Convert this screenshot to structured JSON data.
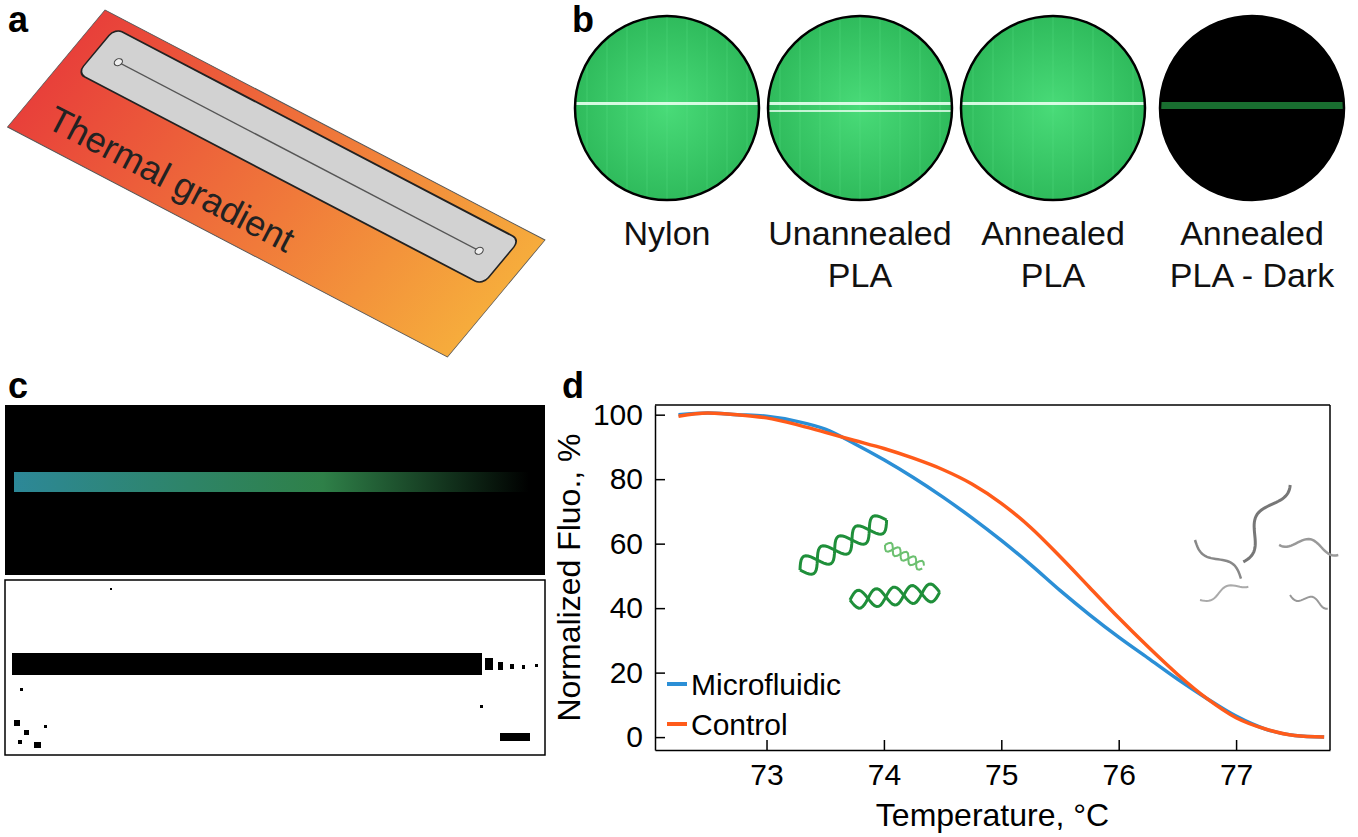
{
  "panels": {
    "a": {
      "letter": "a",
      "label": "Thermal gradient"
    },
    "b": {
      "letter": "b",
      "samples": [
        "Nylon",
        "Unannealed PLA",
        "Annealed PLA",
        "Annealed PLA - Dark"
      ]
    },
    "c": {
      "letter": "c"
    },
    "d": {
      "letter": "d"
    }
  },
  "chart_data": {
    "type": "line",
    "x_label": "Temperature, °C",
    "y_label": "Normalized Fluo., %",
    "x": [
      72.25,
      72.5,
      72.75,
      73,
      73.25,
      73.5,
      73.75,
      74,
      74.25,
      74.5,
      74.75,
      75,
      75.25,
      75.5,
      75.75,
      76,
      76.25,
      76.5,
      76.75,
      77,
      77.25,
      77.5,
      77.75
    ],
    "series": [
      {
        "name": "Microfluidic",
        "color": "#2b8fd6",
        "values": [
          100,
          100.5,
          100,
          99.5,
          98,
          95.5,
          91,
          86,
          80.5,
          74.5,
          68,
          61,
          53.5,
          45.5,
          38,
          31,
          24.5,
          18,
          12,
          6.5,
          2.5,
          0.5,
          0
        ]
      },
      {
        "name": "Control",
        "color": "#ff5b1a",
        "values": [
          99.5,
          100.5,
          100,
          99,
          97,
          94.5,
          92,
          89.5,
          86.5,
          83,
          78.5,
          72.5,
          65,
          56,
          46.5,
          37,
          28,
          19.5,
          12,
          6,
          2.5,
          0.5,
          0
        ]
      }
    ],
    "xlim": [
      72.05,
      77.8
    ],
    "ylim": [
      -4,
      103
    ],
    "xticks": [
      73,
      74,
      75,
      76,
      77
    ],
    "yticks": [
      0,
      20,
      40,
      60,
      80,
      100
    ],
    "legend": "lower left",
    "grid": false
  }
}
